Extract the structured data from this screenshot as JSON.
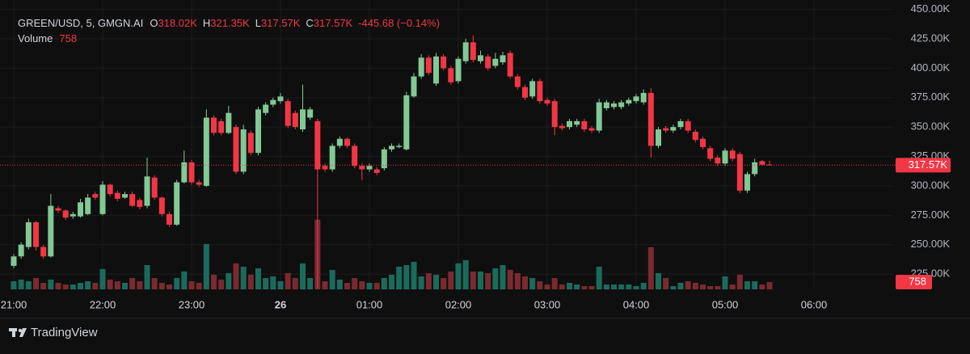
{
  "chart_data": {
    "type": "candlestick",
    "legend": {
      "symbol": "GREEN/USD, 5, GMGN.AI",
      "items": [
        {
          "key": "O",
          "value": "318.02K"
        },
        {
          "key": "H",
          "value": "321.35K"
        },
        {
          "key": "L",
          "value": "317.57K"
        },
        {
          "key": "C",
          "value": "317.57K"
        }
      ],
      "change": "-445.68 (−0.14%)",
      "volume_label": "Volume"
    },
    "last_price_label": "317.57K",
    "brand": "TradingView",
    "up_color": "#81c995",
    "down_color": "#f23645",
    "volume_up_color": "#1b6b5c",
    "volume_down_color": "#7a2a30",
    "x": [
      "21:00",
      "21:05",
      "21:10",
      "21:15",
      "21:20",
      "21:25",
      "21:30",
      "21:35",
      "21:40",
      "21:45",
      "21:50",
      "21:55",
      "22:00",
      "22:05",
      "22:10",
      "22:15",
      "22:20",
      "22:25",
      "22:30",
      "22:35",
      "22:40",
      "22:45",
      "22:50",
      "22:55",
      "23:00",
      "23:05",
      "23:10",
      "23:15",
      "23:20",
      "23:25",
      "23:30",
      "23:35",
      "23:40",
      "23:45",
      "23:50",
      "23:55",
      "00:00",
      "00:05",
      "00:10",
      "00:15",
      "00:20",
      "00:25",
      "00:30",
      "00:35",
      "00:40",
      "00:45",
      "00:50",
      "00:55",
      "01:00",
      "01:05",
      "01:10",
      "01:15",
      "01:20",
      "01:25",
      "01:30",
      "01:35",
      "01:40",
      "01:45",
      "01:50",
      "01:55",
      "02:00",
      "02:05",
      "02:10",
      "02:15",
      "02:20",
      "02:25",
      "02:30",
      "02:35",
      "02:40",
      "02:45",
      "02:50",
      "02:55",
      "03:00",
      "03:05",
      "03:10",
      "03:15",
      "03:20",
      "03:25",
      "03:30",
      "03:35",
      "03:40",
      "03:45",
      "03:50",
      "03:55",
      "04:00",
      "04:05",
      "04:10",
      "04:15",
      "04:20",
      "04:25",
      "04:30",
      "04:35",
      "04:40",
      "04:45",
      "04:50",
      "04:55",
      "05:00",
      "05:05",
      "05:10",
      "05:15",
      "05:20",
      "05:25",
      "05:30"
    ],
    "open": [
      232,
      240,
      248,
      269,
      248,
      240,
      281,
      279,
      274,
      274,
      276,
      293,
      276,
      301,
      294,
      290,
      293,
      288,
      283,
      307,
      290,
      276,
      267,
      303,
      320,
      303,
      300,
      358,
      355,
      345,
      350,
      312,
      345,
      328,
      362,
      369,
      372,
      372,
      362,
      348,
      358,
      355,
      317,
      314,
      334,
      340,
      334,
      317,
      314,
      314,
      315,
      331,
      333,
      331,
      376,
      393,
      409,
      387,
      410,
      400,
      389,
      406,
      422,
      406,
      410,
      402,
      405,
      413,
      393,
      384,
      376,
      389,
      373,
      372,
      351,
      350,
      352,
      355,
      349,
      347,
      366,
      367,
      367,
      370,
      372,
      371,
      379,
      334,
      349,
      347,
      350,
      355,
      346,
      340,
      332,
      324,
      319,
      330,
      327,
      296,
      310,
      321,
      318.02
    ],
    "high": [
      242,
      252,
      272,
      270,
      250,
      293,
      283,
      280,
      278,
      289,
      293,
      295,
      304,
      302,
      296,
      295,
      295,
      290,
      324,
      309,
      291,
      278,
      305,
      330,
      322,
      305,
      365,
      360,
      357,
      368,
      352,
      352,
      347,
      367,
      371,
      375,
      379,
      374,
      364,
      386,
      367,
      357,
      319,
      336,
      342,
      341,
      336,
      319,
      319,
      316,
      333,
      336,
      336,
      380,
      396,
      412,
      411,
      413,
      412,
      402,
      410,
      425,
      428,
      415,
      412,
      413,
      414,
      415,
      395,
      386,
      391,
      391,
      375,
      374,
      353,
      357,
      357,
      357,
      351,
      374,
      373,
      372,
      373,
      375,
      378,
      382,
      383,
      350,
      351,
      352,
      357,
      357,
      348,
      342,
      334,
      326,
      332,
      332,
      329,
      312,
      323,
      322,
      321.35
    ],
    "low": [
      230,
      238,
      246,
      245,
      238,
      239,
      277,
      271,
      272,
      273,
      275,
      288,
      275,
      291,
      287,
      289,
      282,
      280,
      281,
      288,
      274,
      265,
      266,
      302,
      301,
      299,
      299,
      343,
      343,
      344,
      310,
      310,
      326,
      326,
      360,
      367,
      370,
      349,
      348,
      346,
      356,
      213,
      312,
      312,
      332,
      332,
      315,
      305,
      312,
      309,
      313,
      329,
      332,
      330,
      375,
      391,
      394,
      385,
      398,
      386,
      387,
      404,
      405,
      404,
      398,
      400,
      403,
      391,
      382,
      373,
      374,
      370,
      368,
      343,
      347,
      348,
      350,
      346,
      345,
      345,
      364,
      365,
      365,
      368,
      370,
      369,
      324,
      332,
      345,
      345,
      348,
      345,
      337,
      331,
      321,
      317,
      317,
      321,
      294,
      294,
      308,
      317,
      317.57
    ],
    "close": [
      240,
      250,
      269,
      248,
      240,
      283,
      279,
      273,
      276,
      286,
      290,
      290,
      301,
      293,
      289,
      293,
      283,
      282,
      308,
      290,
      276,
      267,
      303,
      320,
      303,
      301,
      358,
      345,
      345,
      362,
      312,
      348,
      328,
      365,
      369,
      373,
      376,
      351,
      350,
      365,
      365,
      314,
      314,
      334,
      340,
      334,
      317,
      314,
      317,
      311,
      331,
      334,
      334,
      377,
      393,
      409,
      396,
      410,
      400,
      388,
      408,
      422,
      407,
      411,
      400,
      408,
      411,
      393,
      384,
      375,
      389,
      372,
      370,
      350,
      349,
      355,
      355,
      348,
      347,
      371,
      371,
      370,
      371,
      373,
      376,
      379,
      334,
      348,
      347,
      350,
      355,
      347,
      339,
      333,
      323,
      319,
      330,
      323,
      296,
      310,
      320,
      318.02,
      317.57
    ],
    "volume": [
      840,
      1008,
      840,
      1176,
      672,
      1008,
      672,
      504,
      504,
      672,
      840,
      672,
      2100,
      1008,
      840,
      672,
      1176,
      840,
      2520,
      1176,
      672,
      504,
      1176,
      1848,
      840,
      672,
      4704,
      1512,
      1008,
      1680,
      2688,
      2352,
      1512,
      2184,
      1176,
      1344,
      840,
      1680,
      1176,
      2688,
      1176,
      7224,
      840,
      2016,
      1008,
      672,
      1176,
      840,
      672,
      672,
      1176,
      1512,
      2352,
      2520,
      2856,
      1344,
      1680,
      1512,
      1176,
      1848,
      2688,
      3024,
      1848,
      1848,
      1680,
      2184,
      2520,
      2016,
      1680,
      1344,
      1176,
      840,
      504,
      1176,
      504,
      672,
      504,
      336,
      336,
      2352,
      504,
      504,
      504,
      504,
      336,
      672,
      4368,
      1680,
      1176,
      336,
      672,
      840,
      672,
      504,
      336,
      336,
      1344,
      504,
      1512,
      840,
      840,
      504,
      758
    ],
    "ylim": [
      212,
      458
    ],
    "vlim": [
      0,
      30000
    ],
    "yticks": [
      {
        "value": 225,
        "label": "225.00K"
      },
      {
        "value": 250,
        "label": "250.00K"
      },
      {
        "value": 275,
        "label": "275.00K"
      },
      {
        "value": 300,
        "label": "300.00K"
      },
      {
        "value": 325,
        "label": "325.00K"
      },
      {
        "value": 350,
        "label": "350.00K"
      },
      {
        "value": 375,
        "label": "375.00K"
      },
      {
        "value": 400,
        "label": "400.00K"
      },
      {
        "value": 425,
        "label": "425.00K"
      },
      {
        "value": 450,
        "label": "450.00K"
      }
    ],
    "xticks": [
      "21:00",
      "22:00",
      "23:00",
      {
        "value": "00:00",
        "label": "26"
      },
      "01:00",
      "02:00",
      "03:00",
      "04:00",
      "05:00",
      "06:00"
    ],
    "grid": true
  }
}
